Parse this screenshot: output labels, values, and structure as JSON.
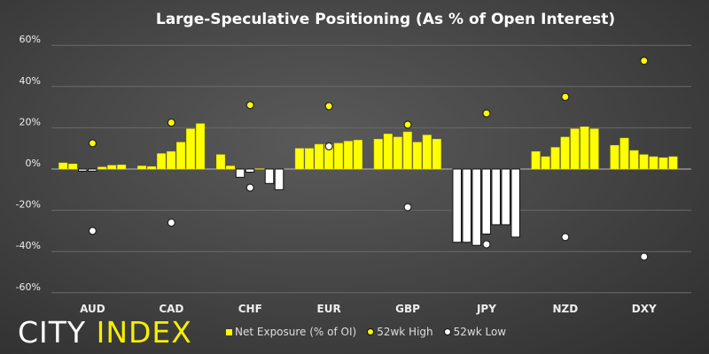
{
  "chart_data": {
    "type": "bar",
    "title": "Large-Speculative Positioning (As % of Open Interest)",
    "categories": [
      "AUD",
      "CAD",
      "CHF",
      "EUR",
      "GBP",
      "JPY",
      "NZD",
      "DXY"
    ],
    "ylim": [
      -60,
      60
    ],
    "yticks": [
      "60%",
      "40%",
      "20%",
      "0%",
      "-20%",
      "-40%",
      "-60%"
    ],
    "ytick_values": [
      60,
      40,
      20,
      0,
      -20,
      -40,
      -60
    ],
    "grid": true,
    "legend_position": "bottom",
    "series": [
      {
        "name": "Net Exposure (% of OI)",
        "type": "bar",
        "color": "#ffff00",
        "negative_color": "#ffffff",
        "values": [
          [
            3,
            2.5,
            -1,
            -1,
            1,
            1.8,
            2
          ],
          [
            1.5,
            1.2,
            7.5,
            8.5,
            13,
            19.5,
            22
          ],
          [
            7,
            1.5,
            -4,
            -1.5,
            0.2,
            -7,
            -10
          ],
          [
            10,
            10,
            12,
            12,
            12.5,
            13.5,
            14
          ],
          [
            14.5,
            17,
            15.5,
            18,
            13,
            16.5,
            14.5
          ],
          [
            -35.5,
            -35.5,
            -37,
            -31.5,
            -27,
            -27,
            -33
          ],
          [
            8.5,
            6,
            10.5,
            15.5,
            19.5,
            20.5,
            19.5
          ],
          [
            11.5,
            15,
            9,
            7,
            6,
            5.5,
            6
          ]
        ]
      },
      {
        "name": "52wk High",
        "type": "scatter",
        "color": "#ffff00",
        "values": [
          12.5,
          22.5,
          31,
          30.5,
          21.5,
          27,
          35,
          52.5
        ]
      },
      {
        "name": "52wk Low",
        "type": "scatter",
        "color": "#ffffff",
        "values": [
          -30,
          -26,
          -9,
          11,
          -18.5,
          -36.5,
          -33,
          -42.5
        ]
      }
    ]
  },
  "logo": {
    "part1": "CITY",
    "part2": "INDEX"
  }
}
